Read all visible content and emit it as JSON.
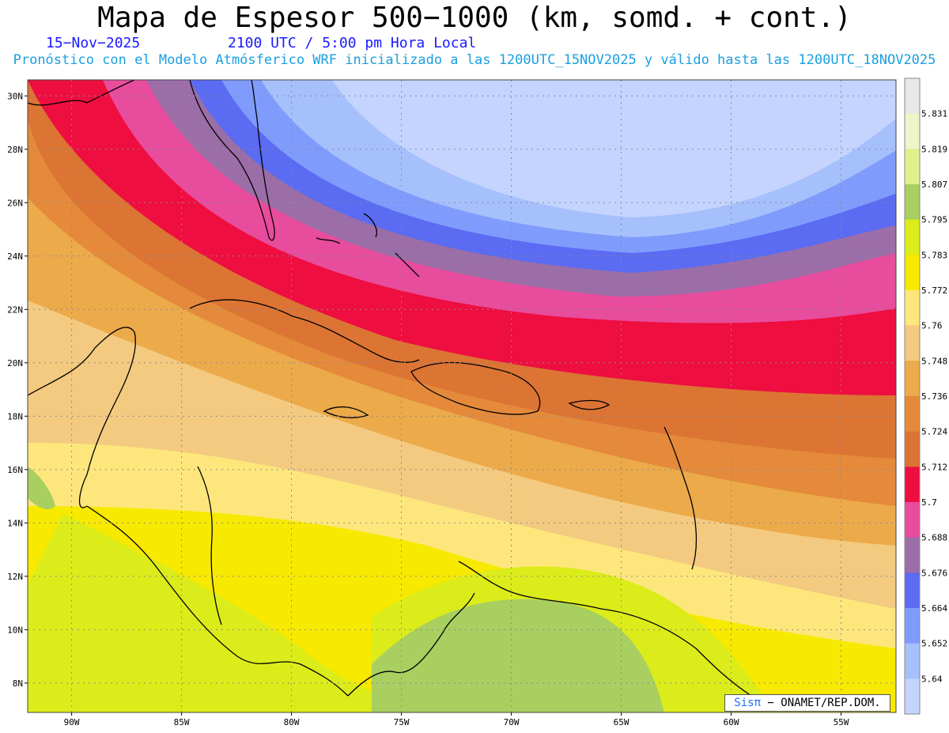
{
  "header": {
    "title": "Mapa de Espesor 500−1000 (km, somd. + cont.)",
    "date": "15−Nov−2025",
    "time": "2100 UTC / 5:00 pm Hora Local",
    "forecast_info": "Pronóstico con el Modelo Atmósferico WRF inicializado a las 1200UTC_15NOV2025 y válido hasta las  1200UTC_18NOV2025"
  },
  "map": {
    "lon_range": [
      -92,
      -52.5
    ],
    "lat_range": [
      6.9,
      30.6
    ],
    "lat_ticks": [
      "30N",
      "28N",
      "26N",
      "24N",
      "22N",
      "20N",
      "18N",
      "16N",
      "14N",
      "12N",
      "10N",
      "8N"
    ],
    "lat_values": [
      30,
      28,
      26,
      24,
      22,
      20,
      18,
      16,
      14,
      12,
      10,
      8
    ],
    "lon_ticks": [
      "90W",
      "85W",
      "80W",
      "75W",
      "70W",
      "65W",
      "60W",
      "55W"
    ],
    "lon_values": [
      -90,
      -85,
      -80,
      -75,
      -70,
      -65,
      -60,
      -55
    ],
    "grid": true
  },
  "colorbar": {
    "labels": [
      "5.831",
      "5.819",
      "5.807",
      "5.795",
      "5.783",
      "5.772",
      "5.76",
      "5.748",
      "5.736",
      "5.724",
      "5.712",
      "5.7",
      "5.688",
      "5.676",
      "5.664",
      "5.652",
      "5.64"
    ],
    "colors": [
      "#e8e8e8",
      "#eef5c8",
      "#dff08c",
      "#a9cf60",
      "#dcec1a",
      "#f7e900",
      "#fde77c",
      "#f3ca80",
      "#ecaa4a",
      "#e48a3a",
      "#dc7434",
      "#ee0e40",
      "#e84c9c",
      "#9b6ea8",
      "#5b6bf2",
      "#7f9cfc",
      "#a6c0fc",
      "#c4d4fe"
    ]
  },
  "credit": {
    "brand": "Sisπ",
    "text": " − ONAMET/REP.DOM."
  }
}
